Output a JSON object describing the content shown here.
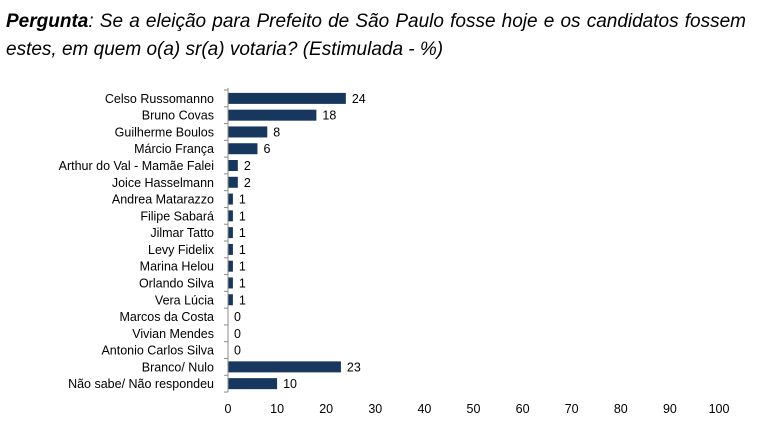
{
  "question": {
    "lead": "Pergunta",
    "text": ": Se a eleição para Prefeito de São Paulo fosse hoje e os candidatos fossem estes, em quem o(a) sr(a) votaria? (Estimulada - %)"
  },
  "chart_data": {
    "type": "bar",
    "orientation": "horizontal",
    "categories": [
      "Celso Russomanno",
      "Bruno Covas",
      "Guilherme Boulos",
      "Márcio França",
      "Arthur do Val - Mamãe Falei",
      "Joice Hasselmann",
      "Andrea Matarazzo",
      "Filipe Sabará",
      "Jilmar Tatto",
      "Levy Fidelix",
      "Marina Helou",
      "Orlando Silva",
      "Vera Lúcia",
      "Marcos da Costa",
      "Vivian Mendes",
      "Antonio Carlos Silva",
      "Branco/ Nulo",
      "Não sabe/ Não respondeu"
    ],
    "values": [
      24,
      18,
      8,
      6,
      2,
      2,
      1,
      1,
      1,
      1,
      1,
      1,
      1,
      0,
      0,
      0,
      23,
      10
    ],
    "xlim": [
      0,
      100
    ],
    "xticks": [
      0,
      10,
      20,
      30,
      40,
      50,
      60,
      70,
      80,
      90,
      100
    ],
    "bar_color": "#17375e",
    "grid": false,
    "legend": "none"
  }
}
